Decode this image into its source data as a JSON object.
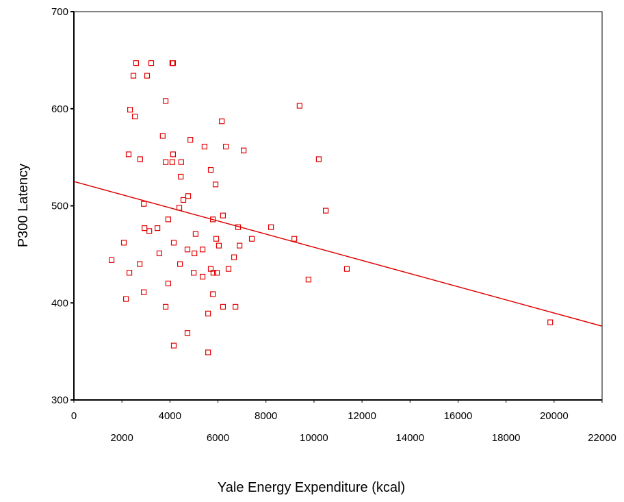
{
  "chart_data": {
    "type": "scatter",
    "x_label": "Yale Energy Expenditure (kcal)",
    "y_label": "P300 Latency",
    "color": "#e00000",
    "xlim": [
      0,
      22000
    ],
    "ylim": [
      300,
      700
    ],
    "xticks": [
      0,
      2000,
      4000,
      6000,
      8000,
      10000,
      12000,
      14000,
      16000,
      18000,
      20000,
      22000
    ],
    "yticks": [
      300,
      400,
      500,
      600,
      700
    ],
    "x": [
      1570,
      2590,
      3220,
      4100,
      4130,
      2480,
      3050,
      2340,
      2540,
      3820,
      9400,
      3700,
      4850,
      6160,
      2280,
      2760,
      5440,
      6330,
      7070,
      10200,
      3820,
      4100,
      4470,
      4130,
      5700,
      4450,
      5900,
      4760,
      4560,
      2910,
      4390,
      10490,
      6210,
      5790,
      3930,
      2940,
      3480,
      3140,
      6840,
      8210,
      5070,
      5930,
      7410,
      9180,
      2080,
      4160,
      6040,
      6900,
      4730,
      5360,
      3560,
      5020,
      6670,
      2740,
      4420,
      5700,
      6440,
      11370,
      2310,
      4990,
      5810,
      5960,
      5360,
      9770,
      3930,
      2910,
      5790,
      2170,
      3820,
      6210,
      6730,
      5590,
      4730,
      4160,
      5590,
      19840
    ],
    "y": [
      444,
      647,
      647,
      647,
      647,
      634,
      634,
      599,
      592,
      608,
      603,
      572,
      568,
      587,
      553,
      548,
      561,
      561,
      557,
      548,
      545,
      545,
      545,
      553,
      537,
      530,
      522,
      510,
      506,
      502,
      498,
      495,
      490,
      486,
      486,
      477,
      477,
      474,
      478,
      478,
      471,
      466,
      466,
      466,
      462,
      462,
      459,
      459,
      455,
      455,
      451,
      451,
      447,
      440,
      440,
      435,
      435,
      435,
      431,
      431,
      431,
      431,
      427,
      424,
      420,
      411,
      409,
      404,
      396,
      396,
      396,
      389,
      369,
      356,
      349,
      380
    ],
    "fit_line": {
      "x": [
        0,
        22000
      ],
      "y": [
        525,
        376
      ]
    }
  }
}
